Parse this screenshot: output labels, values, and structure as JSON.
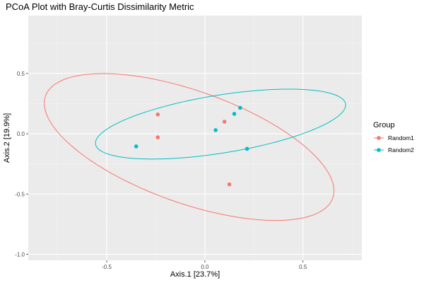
{
  "chart_data": {
    "type": "scatter",
    "title": "PCoA Plot with Bray-Curtis Dissimilarity Metric",
    "xlabel": "Axis.1   [23.7%]",
    "ylabel": "Axis.2   [19.9%]",
    "xlim": [
      -0.9,
      0.8
    ],
    "ylim": [
      -1.05,
      0.98
    ],
    "x_ticks": [
      -0.5,
      0.0,
      0.5
    ],
    "x_tick_labels": [
      "-0.5",
      "0.0",
      "0.5"
    ],
    "y_ticks": [
      -1.0,
      -0.5,
      0.0,
      0.5
    ],
    "y_tick_labels": [
      "-1.0",
      "-0.5",
      "0.0",
      "0.5"
    ],
    "grid": true,
    "legend": {
      "title": "Group",
      "position": "right"
    },
    "series": [
      {
        "name": "Random1",
        "color": "#F8766D",
        "points": [
          {
            "x": -0.24,
            "y": 0.16
          },
          {
            "x": -0.24,
            "y": -0.03
          },
          {
            "x": 0.1,
            "y": 0.1
          },
          {
            "x": 0.125,
            "y": -0.42
          }
        ],
        "ellipse": {
          "cx": -0.08,
          "cy": -0.11,
          "rx": 0.86,
          "ry": 0.42,
          "angle_deg": -36
        }
      },
      {
        "name": "Random2",
        "color": "#00BFC4",
        "points": [
          {
            "x": -0.35,
            "y": -0.105
          },
          {
            "x": 0.055,
            "y": 0.03
          },
          {
            "x": 0.15,
            "y": 0.165
          },
          {
            "x": 0.18,
            "y": 0.215
          },
          {
            "x": 0.215,
            "y": -0.125
          }
        ],
        "ellipse": {
          "cx": 0.08,
          "cy": 0.08,
          "rx": 0.66,
          "ry": 0.235,
          "angle_deg": 16
        }
      }
    ]
  }
}
